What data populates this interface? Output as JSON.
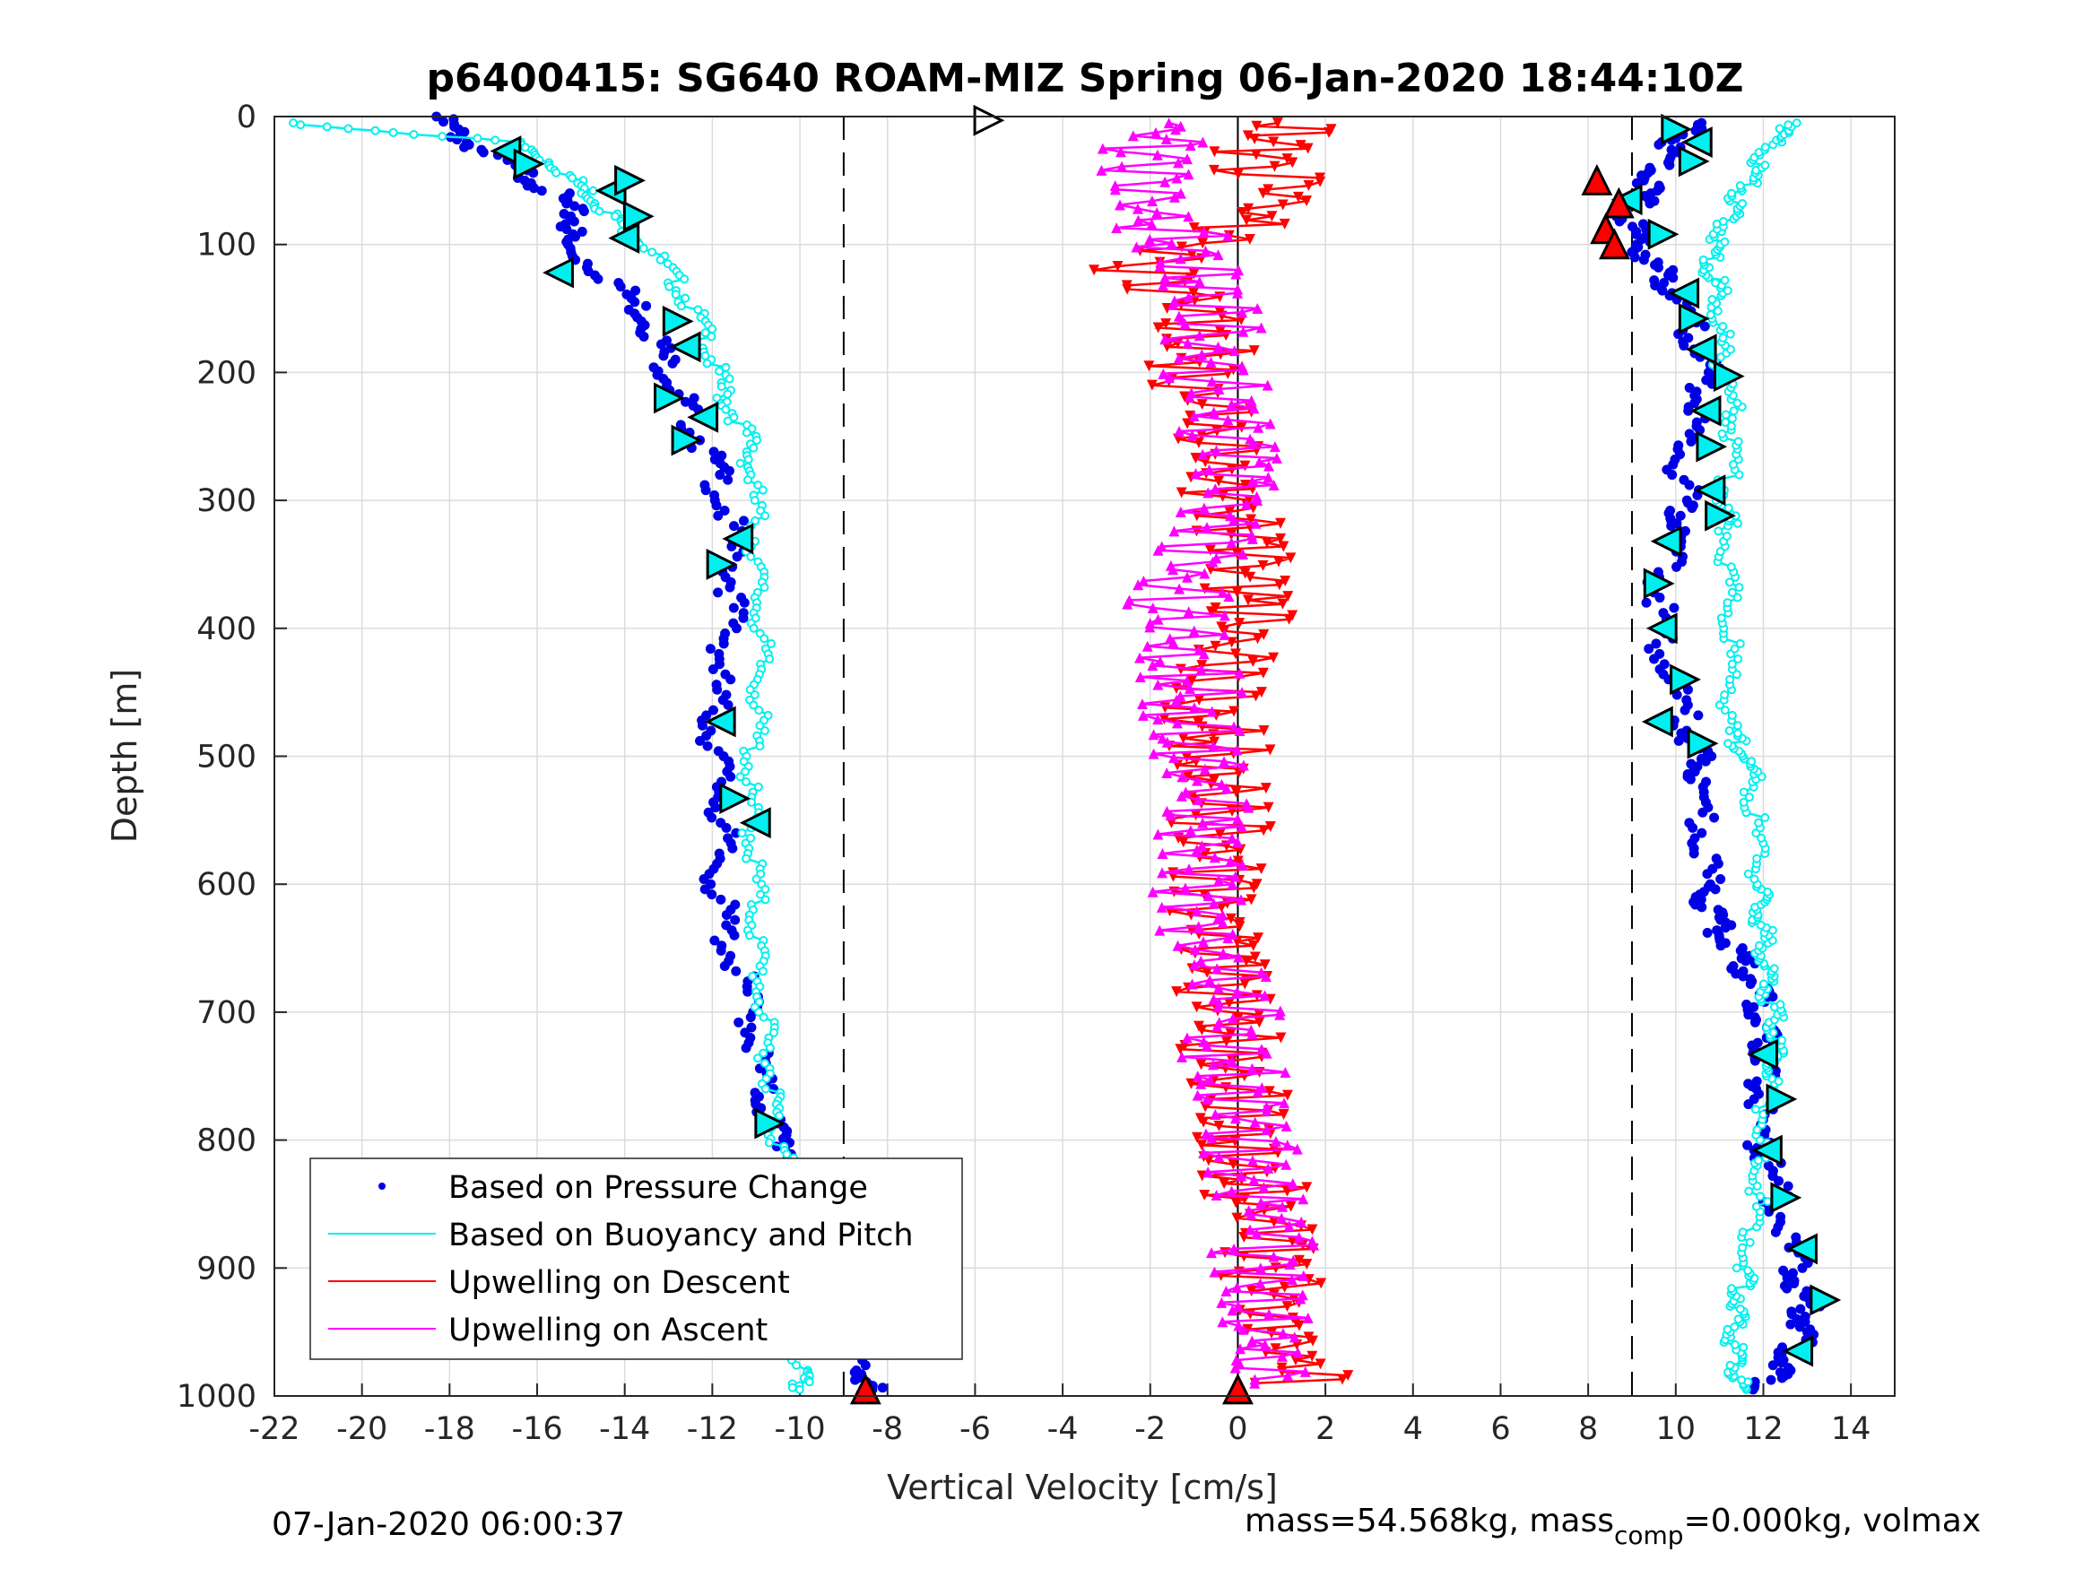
{
  "chart_data": {
    "type": "scatter",
    "title": "p6400415: SG640 ROAM-MIZ Spring 06-Jan-2020 18:44:10Z",
    "xlabel": "Vertical Velocity [cm/s]",
    "ylabel": "Depth [m]",
    "xlim": [
      -22,
      15
    ],
    "ylim": [
      1000,
      0
    ],
    "y_reversed": true,
    "grid": true,
    "x_ticks": [
      "-22",
      "-20",
      "-18",
      "-16",
      "-14",
      "-12",
      "-10",
      "-8",
      "-6",
      "-4",
      "-2",
      "0",
      "2",
      "4",
      "6",
      "8",
      "10",
      "12",
      "14"
    ],
    "x_tick_values": [
      -22,
      -20,
      -18,
      -16,
      -14,
      -12,
      -10,
      -8,
      -6,
      -4,
      -2,
      0,
      2,
      4,
      6,
      8,
      10,
      12,
      14
    ],
    "y_ticks": [
      "0",
      "100",
      "200",
      "300",
      "400",
      "500",
      "600",
      "700",
      "800",
      "900",
      "1000"
    ],
    "y_tick_values": [
      0,
      100,
      200,
      300,
      400,
      500,
      600,
      700,
      800,
      900,
      1000
    ],
    "reference_lines": [
      {
        "x": -9,
        "style": "dashed"
      },
      {
        "x": 0,
        "style": "solid"
      },
      {
        "x": 9,
        "style": "dashed"
      }
    ],
    "legend_position": "bottom-left",
    "legend": [
      {
        "label": "Based on Pressure Change",
        "color": "#0000e6",
        "marker": "dot"
      },
      {
        "label": "Based on Buoyancy and Pitch",
        "color": "#00f0f0",
        "marker": "line"
      },
      {
        "label": "Upwelling on Descent",
        "color": "#ff0000",
        "marker": "line"
      },
      {
        "label": "Upwelling on Ascent",
        "color": "#ff00ff",
        "marker": "line"
      }
    ],
    "series": [
      {
        "name": "Based on Pressure Change",
        "color": "#0000e6",
        "segments": [
          {
            "label": "descent",
            "depth": [
              0,
              20,
              40,
              60,
              80,
              100,
              130,
              160,
              190,
              220,
              250,
              280,
              320,
              360,
              400,
              440,
              480,
              520,
              560,
              600,
              640,
              680,
              720,
              760,
              790,
              820,
              860,
              900,
              940,
              980,
              995
            ],
            "velocity": [
              -18.3,
              -17.6,
              -16.5,
              -15.6,
              -15.1,
              -15.4,
              -14.2,
              -13.4,
              -13.1,
              -12.7,
              -12.3,
              -11.9,
              -11.6,
              -11.5,
              -11.6,
              -11.9,
              -12,
              -11.8,
              -11.8,
              -11.9,
              -11.7,
              -11.3,
              -11,
              -10.9,
              -10.6,
              -10,
              -9.5,
              -9.2,
              -8.9,
              -8.6,
              -8.4
            ]
          },
          {
            "label": "ascent",
            "depth": [
              995,
              980,
              960,
              940,
              920,
              900,
              860,
              820,
              800,
              760,
              740,
              720,
              700,
              680,
              660,
              640,
              620,
              600,
              560,
              520,
              500,
              480,
              440,
              400,
              360,
              320,
              300,
              260,
              230,
              200,
              170,
              140,
              120,
              100,
              80,
              60,
              40,
              20,
              5
            ],
            "velocity": [
              11.9,
              12.3,
              12.8,
              13,
              12.9,
              12.7,
              12.4,
              12.1,
              11.9,
              11.9,
              12,
              12,
              12,
              11.8,
              11.5,
              11.1,
              10.7,
              10.7,
              10.6,
              10.5,
              10.5,
              10.3,
              9.9,
              9.6,
              9.7,
              10.1,
              10.2,
              10.1,
              10.6,
              10.7,
              10.4,
              10,
              9.6,
              9.2,
              8.9,
              9.3,
              9.6,
              10,
              10.5
            ]
          }
        ]
      },
      {
        "name": "Based on Buoyancy and Pitch",
        "color": "#00f0f0",
        "segments": [
          {
            "label": "descent",
            "depth": [
              5,
              20,
              40,
              60,
              80,
              100,
              130,
              160,
              190,
              220,
              250,
              280,
              320,
              360,
              400,
              440,
              480,
              520,
              560,
              600,
              640,
              680,
              720,
              760,
              790,
              820,
              860,
              900,
              940,
              980,
              995
            ],
            "velocity": [
              -21.8,
              -16.5,
              -15.5,
              -14.8,
              -14.2,
              -13.5,
              -12.8,
              -12.3,
              -12,
              -11.7,
              -11.2,
              -11.1,
              -11,
              -11,
              -10.9,
              -10.9,
              -11,
              -11.2,
              -11.1,
              -11,
              -11,
              -10.9,
              -10.8,
              -10.6,
              -10.6,
              -10.3,
              -10.2,
              -10.1,
              -10.1,
              -10,
              -10
            ]
          },
          {
            "label": "ascent",
            "depth": [
              995,
              980,
              960,
              940,
              920,
              900,
              860,
              820,
              800,
              760,
              740,
              720,
              700,
              680,
              660,
              640,
              620,
              600,
              560,
              520,
              500,
              480,
              440,
              400,
              360,
              320,
              300,
              260,
              230,
              200,
              170,
              140,
              120,
              100,
              80,
              60,
              40,
              20,
              5
            ],
            "velocity": [
              11.4,
              11.4,
              11.3,
              11.4,
              11.5,
              11.6,
              11.8,
              12,
              12,
              12.1,
              12.2,
              12.3,
              12.2,
              12.1,
              12,
              12,
              11.9,
              11.9,
              11.8,
              11.8,
              11.6,
              11.2,
              11.3,
              11.2,
              11.2,
              11.2,
              11.1,
              11.3,
              11.3,
              11.1,
              11,
              11,
              10.8,
              10.9,
              11.2,
              11.5,
              11.8,
              12.2,
              12.8
            ]
          }
        ]
      },
      {
        "name": "Upwelling on Descent",
        "color": "#ff0000",
        "depth": [
          5,
          30,
          60,
          90,
          120,
          150,
          180,
          210,
          240,
          270,
          300,
          330,
          360,
          390,
          420,
          450,
          480,
          510,
          540,
          570,
          600,
          630,
          660,
          690,
          720,
          750,
          780,
          810,
          840,
          870,
          900,
          930,
          960,
          990
        ],
        "velocity": [
          1.5,
          0.5,
          0.8,
          -0.2,
          -2.3,
          -1,
          -0.8,
          -0.9,
          -0.7,
          -0.4,
          -0.2,
          0.1,
          0.2,
          0.1,
          -0.3,
          -0.5,
          -0.6,
          -0.3,
          -0.4,
          -0.4,
          -0.7,
          -0.8,
          -0.5,
          -0.3,
          -0.2,
          0,
          0.2,
          0.3,
          0.4,
          0.5,
          0.7,
          0.9,
          1.1,
          1.4
        ]
      },
      {
        "name": "Upwelling on Ascent",
        "color": "#ff00ff",
        "depth": [
          990,
          960,
          930,
          900,
          870,
          840,
          810,
          780,
          750,
          720,
          690,
          660,
          630,
          600,
          570,
          540,
          510,
          480,
          450,
          420,
          390,
          360,
          330,
          300,
          270,
          240,
          210,
          180,
          150,
          120,
          90,
          60,
          30,
          5
        ],
        "velocity": [
          0.6,
          0.7,
          0.6,
          0.6,
          0.5,
          0.4,
          0.2,
          0.1,
          -0.1,
          -0.1,
          -0.1,
          -0.5,
          -0.8,
          -1,
          -0.9,
          -0.9,
          -1,
          -1,
          -1.1,
          -1.2,
          -1.4,
          -1.3,
          -0.8,
          -0.4,
          -0.2,
          -0.3,
          -0.5,
          -0.6,
          -0.4,
          -0.6,
          -1.5,
          -2.5,
          -2,
          -1.8
        ]
      },
      {
        "name": "descent markers",
        "color": "#00f0f0",
        "marker": "triangle",
        "points": [
          [
            -16.7,
            27
          ],
          [
            -16.2,
            37
          ],
          [
            -14.3,
            58
          ],
          [
            -13.9,
            50
          ],
          [
            -14,
            95
          ],
          [
            -13.7,
            78
          ],
          [
            -15.5,
            122
          ],
          [
            -12.8,
            160
          ],
          [
            -12.6,
            180
          ],
          [
            -13,
            220
          ],
          [
            -12.2,
            235
          ],
          [
            -12.6,
            253
          ],
          [
            -11.4,
            330
          ],
          [
            -11.8,
            350
          ],
          [
            -11.8,
            473
          ],
          [
            -11.5,
            533
          ],
          [
            -11,
            552
          ],
          [
            -10.7,
            787
          ]
        ]
      },
      {
        "name": "ascent markers",
        "color": "#00f0f0",
        "marker": "triangle",
        "points": [
          [
            10,
            10
          ],
          [
            10.5,
            20
          ],
          [
            10.4,
            35
          ],
          [
            8.9,
            65
          ],
          [
            9.7,
            92
          ],
          [
            10.2,
            138
          ],
          [
            10.4,
            158
          ],
          [
            10.6,
            182
          ],
          [
            11.2,
            203
          ],
          [
            10.7,
            230
          ],
          [
            10.8,
            258
          ],
          [
            10.8,
            292
          ],
          [
            11,
            312
          ],
          [
            9.8,
            332
          ],
          [
            9.6,
            365
          ],
          [
            9.7,
            400
          ],
          [
            10.2,
            440
          ],
          [
            9.6,
            473
          ],
          [
            10.6,
            490
          ],
          [
            12,
            733
          ],
          [
            12.4,
            768
          ],
          [
            12.1,
            808
          ],
          [
            12.5,
            845
          ],
          [
            12.9,
            885
          ],
          [
            13.4,
            925
          ],
          [
            12.8,
            965
          ],
          [
            -5.7,
            3
          ]
        ]
      },
      {
        "name": "red markers",
        "color": "#ff0000",
        "marker": "triangle",
        "points": [
          [
            8.2,
            50
          ],
          [
            8.7,
            68
          ],
          [
            8.4,
            88
          ],
          [
            8.6,
            100
          ],
          [
            -8.5,
            995
          ],
          [
            0,
            995
          ]
        ]
      }
    ]
  },
  "footer": {
    "timestamp": "07-Jan-2020 06:00:37",
    "mass_text_prefix": "mass=54.568kg, mass",
    "mass_subscript": "comp",
    "mass_text_suffix": "=0.000kg, volmax"
  }
}
